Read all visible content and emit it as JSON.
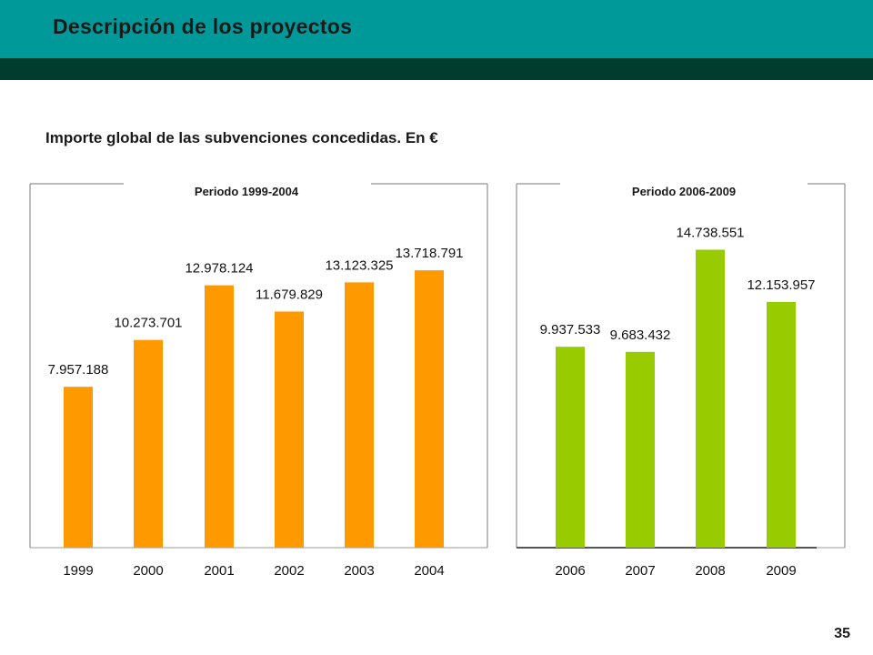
{
  "header": {
    "title": "Descripción de los proyectos"
  },
  "subtitle": "Importe global de las subvenciones concedidas. En €",
  "page_number": "35",
  "colors": {
    "teal": "#009999",
    "dark_green": "#003D2E",
    "orange": "#FF9900",
    "green": "#99CC00"
  },
  "chart_data": [
    {
      "type": "bar",
      "title": "Periodo 1999-2004",
      "categories": [
        "1999",
        "2000",
        "2001",
        "2002",
        "2003",
        "2004"
      ],
      "values": [
        7957188,
        10273701,
        12978124,
        11679829,
        13123325,
        13718791
      ],
      "data_labels": [
        "7.957.188",
        "10.273.701",
        "12.978.124",
        "11.679.829",
        "13.123.325",
        "13.718.791"
      ],
      "ylim": [
        0,
        18000000
      ],
      "color": "#FF9900",
      "grid": false
    },
    {
      "type": "bar",
      "title": "Periodo 2006-2009",
      "categories": [
        "2006",
        "2007",
        "2008",
        "2009"
      ],
      "values": [
        9937533,
        9683432,
        14738551,
        12153957
      ],
      "data_labels": [
        "9.937.533",
        "9.683.432",
        "14.738.551",
        "12.153.957"
      ],
      "ylim": [
        0,
        18000000
      ],
      "color": "#99CC00",
      "grid": false
    }
  ]
}
